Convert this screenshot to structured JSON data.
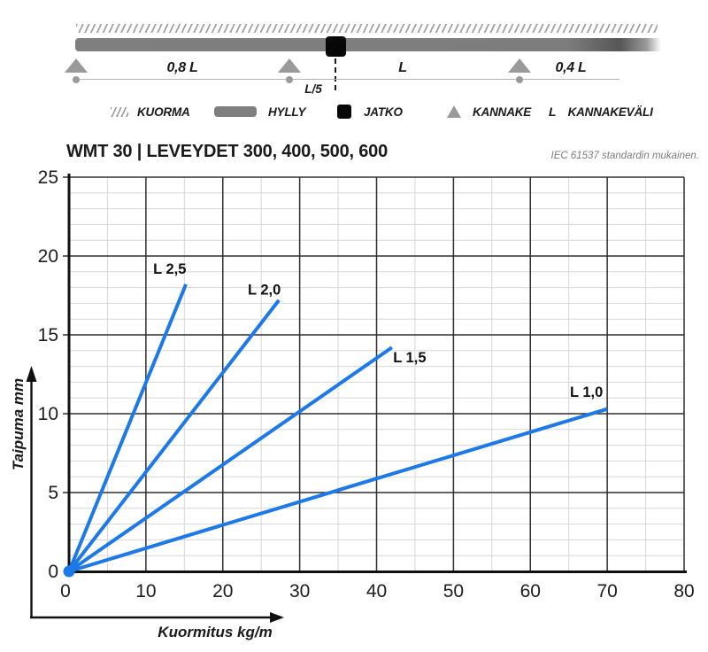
{
  "header": {
    "title": "WMT 30 | LEVEYDET 300, 400, 500, 600",
    "standard_note": "IEC 61537 standardin mukainen."
  },
  "diagram": {
    "labels": {
      "span1": "0,8 L",
      "span2": "L",
      "span3": "0,4 L",
      "joint_offset": "L/5"
    }
  },
  "legend": {
    "items": [
      {
        "icon": "hatch-icon",
        "label": "KUORMA"
      },
      {
        "icon": "shelf-bar-icon",
        "label": "HYLLY"
      },
      {
        "icon": "joint-square-icon",
        "label": "JATKO"
      },
      {
        "icon": "support-triangle-icon",
        "label": "KANNAKE"
      },
      {
        "icon": "letter-L-symbol",
        "symbol": "L",
        "label": "KANNAKEVÄLI"
      }
    ]
  },
  "colors": {
    "line_blue": "#1d79e8",
    "shelf_gray": "#7f7f7f",
    "support_gray": "#9a9a9a",
    "joint_black": "#070707"
  },
  "chart_data": {
    "type": "line",
    "title": "WMT 30 | LEVEYDET 300, 400, 500, 600",
    "xlabel": "Kuormitus kg/m",
    "ylabel": "Taipuma mm",
    "xlim": [
      0,
      80
    ],
    "ylim": [
      0,
      25
    ],
    "xticks": [
      0,
      10,
      20,
      30,
      40,
      50,
      60,
      70,
      80
    ],
    "yticks": [
      0,
      5,
      10,
      15,
      20,
      25
    ],
    "minor_x_step": 5,
    "minor_y_step": 1,
    "grid": true,
    "legend_position": "inline-labels",
    "line_color": "#1d79e8",
    "series": [
      {
        "name": "L 2,5",
        "x": [
          0,
          15.2
        ],
        "y": [
          0,
          18.2
        ],
        "label_at": [
          13.1,
          19.2
        ]
      },
      {
        "name": "L 2,0",
        "x": [
          0,
          27.3
        ],
        "y": [
          0,
          17.2
        ],
        "label_at": [
          25.4,
          17.9
        ]
      },
      {
        "name": "L 1,5",
        "x": [
          0,
          42.0
        ],
        "y": [
          0,
          14.2
        ],
        "label_at": [
          44.3,
          13.6
        ]
      },
      {
        "name": "L 1,0",
        "x": [
          0,
          70.0
        ],
        "y": [
          0,
          10.3
        ],
        "label_at": [
          67.3,
          11.4
        ]
      }
    ]
  }
}
